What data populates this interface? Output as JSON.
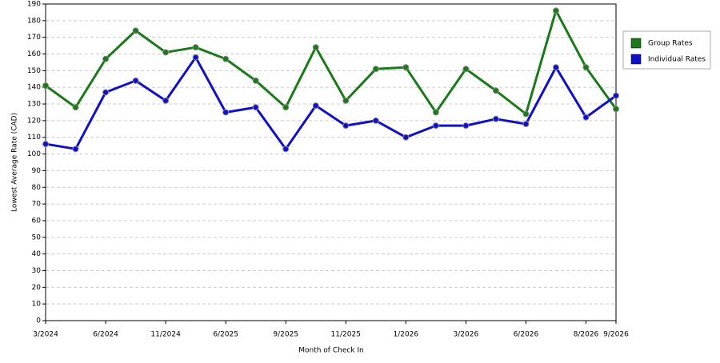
{
  "chart_data": {
    "type": "line",
    "x_label": "Month of Check In",
    "y_label": "Lowest Average Rate (CAD)",
    "categories": [
      "3/2024",
      null,
      "6/2024",
      null,
      "11/2024",
      null,
      "6/2025",
      null,
      "9/2025",
      null,
      "11/2025",
      null,
      "1/2026",
      null,
      "3/2026",
      null,
      "6/2026",
      null,
      "8/2026",
      "9/2026"
    ],
    "series": [
      {
        "name": "Group Rates",
        "color": "#1a7a1a",
        "values": [
          141,
          128,
          157,
          174,
          161,
          164,
          157,
          144,
          128,
          164,
          132,
          151,
          152,
          125,
          151,
          138,
          124,
          186,
          152,
          127
        ]
      },
      {
        "name": "Individual Rates",
        "color": "#1010cc",
        "values": [
          106,
          103,
          137,
          144,
          132,
          158,
          125,
          128,
          103,
          129,
          117,
          120,
          110,
          117,
          117,
          121,
          118,
          152,
          122,
          135
        ]
      }
    ],
    "ylim": [
      0,
      190
    ],
    "yticks": [
      0,
      10,
      20,
      30,
      40,
      50,
      60,
      70,
      80,
      90,
      100,
      110,
      120,
      130,
      140,
      150,
      160,
      170,
      180,
      190
    ],
    "grid": true,
    "legend": "right"
  }
}
